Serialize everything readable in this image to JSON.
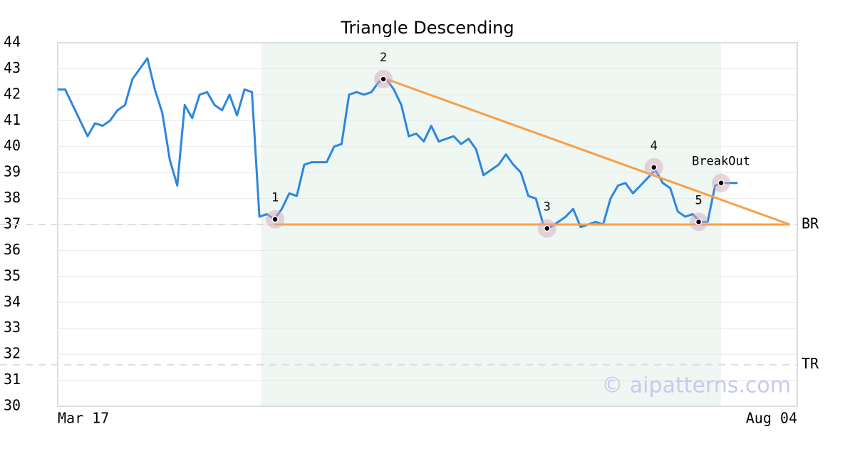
{
  "chart_data": {
    "type": "line",
    "title": "Triangle Descending",
    "x": [
      0,
      1,
      2,
      3,
      4,
      5,
      6,
      7,
      8,
      9,
      10,
      11,
      12,
      13,
      14,
      15,
      16,
      17,
      18,
      19,
      20,
      21,
      22,
      23,
      24,
      25,
      26,
      27,
      28,
      29,
      30,
      31,
      32,
      33,
      34,
      35,
      36,
      37,
      38,
      39,
      40,
      41,
      42,
      43,
      44,
      45,
      46,
      47,
      48,
      49,
      50,
      51,
      52,
      53,
      54,
      55,
      56,
      57,
      58,
      59,
      60,
      61,
      62,
      63,
      64,
      65,
      66,
      67,
      68,
      69,
      70,
      71,
      72,
      73,
      74,
      75,
      76,
      77,
      78,
      79,
      80,
      81,
      82,
      83,
      84,
      85,
      86,
      87,
      88,
      89,
      90,
      91
    ],
    "values": [
      42.2,
      42.2,
      41.6,
      41.0,
      40.4,
      40.9,
      40.8,
      41.0,
      41.4,
      41.6,
      42.6,
      43.0,
      43.4,
      42.2,
      41.3,
      39.5,
      38.5,
      41.6,
      41.1,
      42.0,
      42.1,
      41.6,
      41.4,
      42.0,
      41.2,
      42.2,
      42.1,
      37.3,
      37.4,
      37.2,
      37.6,
      38.2,
      38.1,
      39.3,
      39.4,
      39.4,
      39.4,
      40.0,
      40.1,
      42.0,
      42.1,
      42.0,
      42.1,
      42.5,
      42.6,
      42.2,
      41.6,
      40.4,
      40.5,
      40.2,
      40.8,
      40.2,
      40.3,
      40.4,
      40.1,
      40.3,
      39.9,
      38.9,
      39.1,
      39.3,
      39.7,
      39.3,
      39.0,
      38.1,
      38.0,
      37.0,
      36.9,
      37.1,
      37.3,
      37.6,
      36.9,
      37.0,
      37.1,
      37.0,
      38.0,
      38.5,
      38.6,
      38.2,
      38.5,
      38.8,
      39.1,
      38.6,
      38.4,
      37.5,
      37.3,
      37.4,
      37.1,
      37.1,
      38.5,
      38.6,
      38.6,
      38.6
    ],
    "color": "#2e86de",
    "xlim": [
      0,
      99
    ],
    "xticks": [
      {
        "value": 0,
        "label": "Mar 17"
      },
      {
        "value": 99,
        "label": "Aug 04"
      }
    ],
    "ylim": [
      30,
      44
    ],
    "yticks": [
      30,
      31,
      32,
      33,
      34,
      35,
      36,
      37,
      38,
      39,
      40,
      41,
      42,
      43,
      44
    ],
    "grid": true,
    "highlight": {
      "x": [
        27.2,
        88.8
      ],
      "color": "#eef7f2"
    },
    "trendlines": [
      {
        "x": [
          44,
          98
        ],
        "y": [
          42.6,
          37.0
        ],
        "color": "#f7a04b"
      },
      {
        "x": [
          29,
          98
        ],
        "y": [
          37.0,
          37.0
        ],
        "color": "#f7a04b"
      }
    ],
    "levels": [
      {
        "label": "BR",
        "value": 37.0
      },
      {
        "label": "TR",
        "value": 31.6
      }
    ],
    "pivots": [
      {
        "label": "1",
        "x": 29.1,
        "y": 37.2
      },
      {
        "label": "2",
        "x": 43.6,
        "y": 42.6
      },
      {
        "label": "3",
        "x": 65.5,
        "y": 36.85
      },
      {
        "label": "4",
        "x": 79.8,
        "y": 39.2
      },
      {
        "label": "5",
        "x": 85.8,
        "y": 37.1
      },
      {
        "label": "BreakOut",
        "x": 88.8,
        "y": 38.6
      }
    ],
    "watermark": "© aipatterns.com"
  }
}
